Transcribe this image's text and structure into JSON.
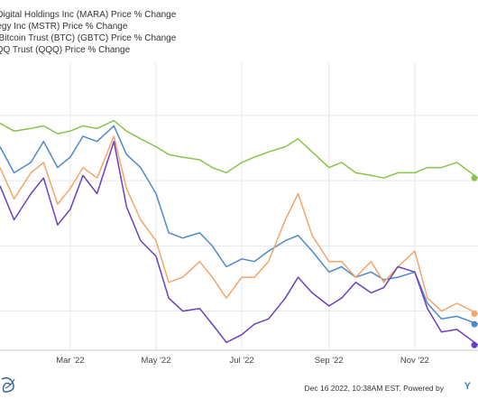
{
  "legend": [
    {
      "label": "n Digital Holdings Inc (MARA) Price % Change",
      "color": "#6a3fbf"
    },
    {
      "label": "ategy Inc (MSTR) Price % Change",
      "color": "#f3a56a"
    },
    {
      "label": "le Bitcoin Trust (BTC) (GBTC) Price % Change",
      "color": "#4f88c9"
    },
    {
      "label": "QQQ Trust (QQQ) Price % Change",
      "color": "#8ac34a"
    }
  ],
  "footer": {
    "text": "Dec 16 2022, 10:38AM EST. Powered by",
    "brand": "Y"
  },
  "chart_data": {
    "type": "line",
    "x_ticks": [
      "Mar '22",
      "May '22",
      "Jul '22",
      "Sep '22",
      "Nov '22"
    ],
    "x_tick_dates": [
      "2022-03-01",
      "2022-05-01",
      "2022-07-01",
      "2022-09-01",
      "2022-11-01"
    ],
    "x_range": [
      "2022-01-10",
      "2022-12-16"
    ],
    "y_range": [
      -90,
      20
    ],
    "grid": true,
    "legend_position": "top-left",
    "series": [
      {
        "name": "n Digital Holdings Inc (MARA) Price % Change",
        "color": "#6a3fbf",
        "x": [
          "2022-01-10",
          "2022-01-20",
          "2022-02-01",
          "2022-02-10",
          "2022-02-20",
          "2022-03-01",
          "2022-03-10",
          "2022-03-20",
          "2022-04-01",
          "2022-04-10",
          "2022-04-20",
          "2022-05-01",
          "2022-05-10",
          "2022-05-20",
          "2022-06-01",
          "2022-06-10",
          "2022-06-20",
          "2022-07-01",
          "2022-07-10",
          "2022-07-20",
          "2022-08-01",
          "2022-08-10",
          "2022-08-20",
          "2022-09-01",
          "2022-09-10",
          "2022-09-20",
          "2022-10-01",
          "2022-10-10",
          "2022-10-20",
          "2022-11-01",
          "2022-11-10",
          "2022-11-20",
          "2022-12-01",
          "2022-12-16"
        ],
        "y": [
          -27,
          -40,
          -30,
          -24,
          -42,
          -36,
          -23,
          -30,
          -10,
          -35,
          -48,
          -54,
          -70,
          -75,
          -74,
          -80,
          -87,
          -84,
          -80,
          -78,
          -70,
          -62,
          -68,
          -73,
          -70,
          -64,
          -68,
          -66,
          -58,
          -60,
          -74,
          -83,
          -82,
          -88
        ]
      },
      {
        "name": "ategy Inc (MSTR) Price % Change",
        "color": "#f3a56a",
        "x": [
          "2022-01-10",
          "2022-01-20",
          "2022-02-01",
          "2022-02-10",
          "2022-02-20",
          "2022-03-01",
          "2022-03-10",
          "2022-03-20",
          "2022-04-01",
          "2022-04-10",
          "2022-04-20",
          "2022-05-01",
          "2022-05-10",
          "2022-05-20",
          "2022-06-01",
          "2022-06-10",
          "2022-06-20",
          "2022-07-01",
          "2022-07-10",
          "2022-07-20",
          "2022-08-01",
          "2022-08-10",
          "2022-08-20",
          "2022-09-01",
          "2022-09-10",
          "2022-09-20",
          "2022-10-01",
          "2022-10-10",
          "2022-10-20",
          "2022-11-01",
          "2022-11-10",
          "2022-11-20",
          "2022-12-01",
          "2022-12-16"
        ],
        "y": [
          -20,
          -32,
          -22,
          -18,
          -34,
          -28,
          -20,
          -24,
          -8,
          -28,
          -40,
          -48,
          -64,
          -62,
          -56,
          -62,
          -70,
          -62,
          -62,
          -56,
          -40,
          -30,
          -46,
          -56,
          -56,
          -62,
          -56,
          -64,
          -58,
          -52,
          -70,
          -75,
          -72,
          -76
        ]
      },
      {
        "name": "le Bitcoin Trust (BTC) (GBTC) Price % Change",
        "color": "#4f88c9",
        "x": [
          "2022-01-10",
          "2022-01-20",
          "2022-02-01",
          "2022-02-10",
          "2022-02-20",
          "2022-03-01",
          "2022-03-10",
          "2022-03-20",
          "2022-04-01",
          "2022-04-10",
          "2022-04-20",
          "2022-05-01",
          "2022-05-10",
          "2022-05-20",
          "2022-06-01",
          "2022-06-10",
          "2022-06-20",
          "2022-07-01",
          "2022-07-10",
          "2022-07-20",
          "2022-08-01",
          "2022-08-10",
          "2022-08-20",
          "2022-09-01",
          "2022-09-10",
          "2022-09-20",
          "2022-10-01",
          "2022-10-10",
          "2022-10-20",
          "2022-11-01",
          "2022-11-10",
          "2022-11-20",
          "2022-12-01",
          "2022-12-16"
        ],
        "y": [
          -12,
          -22,
          -18,
          -10,
          -20,
          -16,
          -8,
          -10,
          -4,
          -15,
          -20,
          -30,
          -45,
          -47,
          -45,
          -50,
          -58,
          -55,
          -56,
          -52,
          -48,
          -46,
          -52,
          -60,
          -58,
          -62,
          -60,
          -63,
          -62,
          -60,
          -72,
          -78,
          -77,
          -80
        ]
      },
      {
        "name": "QQQ Trust (QQQ) Price % Change",
        "color": "#8ac34a",
        "x": [
          "2022-01-10",
          "2022-01-20",
          "2022-02-01",
          "2022-02-10",
          "2022-02-20",
          "2022-03-01",
          "2022-03-10",
          "2022-03-20",
          "2022-04-01",
          "2022-04-10",
          "2022-04-20",
          "2022-05-01",
          "2022-05-10",
          "2022-05-20",
          "2022-06-01",
          "2022-06-10",
          "2022-06-20",
          "2022-07-01",
          "2022-07-10",
          "2022-07-20",
          "2022-08-01",
          "2022-08-10",
          "2022-08-20",
          "2022-09-01",
          "2022-09-10",
          "2022-09-20",
          "2022-10-01",
          "2022-10-10",
          "2022-10-20",
          "2022-11-01",
          "2022-11-10",
          "2022-11-20",
          "2022-12-01",
          "2022-12-16"
        ],
        "y": [
          -3,
          -6,
          -5,
          -4,
          -7,
          -6,
          -4,
          -5,
          -2,
          -6,
          -9,
          -12,
          -15,
          -16,
          -17,
          -20,
          -22,
          -18,
          -16,
          -14,
          -12,
          -9,
          -14,
          -20,
          -18,
          -22,
          -23,
          -24,
          -22,
          -22,
          -20,
          -20,
          -18,
          -24
        ]
      }
    ]
  }
}
